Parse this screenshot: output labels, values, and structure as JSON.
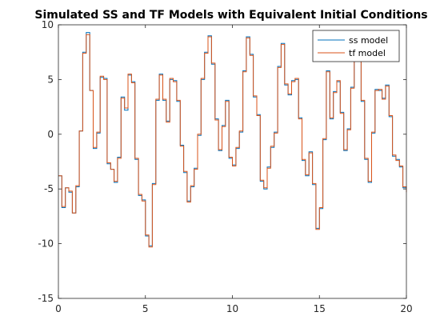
{
  "chart_data": {
    "type": "line",
    "title": "Simulated SS and TF Models with Equivalent Initial Conditions",
    "xlabel": "",
    "ylabel": "",
    "xlim": [
      0,
      20
    ],
    "ylim": [
      -15,
      10
    ],
    "xticks": [
      "0",
      "5",
      "10",
      "15",
      "20"
    ],
    "yticks": [
      "10",
      "5",
      "0",
      "-5",
      "-10",
      "-15"
    ],
    "grid": false,
    "legend_position": "top-right",
    "series": [
      {
        "name": "ss model",
        "color": "#0072BD"
      },
      {
        "name": "tf model",
        "color": "#D95319"
      }
    ],
    "x": [
      0,
      0.2,
      0.4,
      0.6,
      0.8,
      1.0,
      1.2,
      1.4,
      1.6,
      1.8,
      2.0,
      2.2,
      2.4,
      2.6,
      2.8,
      3.0,
      3.2,
      3.4,
      3.6,
      3.8,
      4.0,
      4.2,
      4.4,
      4.6,
      4.8,
      5.0,
      5.2,
      5.4,
      5.6,
      5.8,
      6.0,
      6.2,
      6.4,
      6.6,
      6.8,
      7.0,
      7.2,
      7.4,
      7.6,
      7.8,
      8.0,
      8.2,
      8.4,
      8.6,
      8.8,
      9.0,
      9.2,
      9.4,
      9.6,
      9.8,
      10.0,
      10.2,
      10.4,
      10.6,
      10.8,
      11.0,
      11.2,
      11.4,
      11.6,
      11.8,
      12.0,
      12.2,
      12.4,
      12.6,
      12.8,
      13.0,
      13.2,
      13.4,
      13.6,
      13.8,
      14.0,
      14.2,
      14.4,
      14.6,
      14.8,
      15.0,
      15.2,
      15.4,
      15.6,
      15.8,
      16.0,
      16.2,
      16.4,
      16.6,
      16.8,
      17.0,
      17.2,
      17.4,
      17.6,
      17.8,
      18.0,
      18.2,
      18.4,
      18.6,
      18.8,
      19.0,
      19.2,
      19.4,
      19.6,
      19.8,
      20.0
    ],
    "y": [
      -3.8,
      -6.7,
      -4.9,
      -5.3,
      -7.2,
      -4.8,
      0.3,
      7.5,
      9.3,
      4.0,
      -1.3,
      0.1,
      5.2,
      5.1,
      -2.7,
      -3.2,
      -4.4,
      -2.1,
      3.4,
      2.2,
      5.4,
      4.8,
      -2.3,
      -5.6,
      -6.0,
      -9.3,
      -10.2,
      -4.5,
      3.1,
      5.5,
      3.1,
      1.2,
      5.0,
      4.9,
      3.0,
      -1.0,
      -3.5,
      -6.1,
      -4.8,
      -3.1,
      -0.1,
      5.0,
      7.5,
      9.0,
      6.4,
      1.4,
      -1.5,
      0.8,
      3.1,
      -2.2,
      -2.8,
      -1.3,
      0.2,
      5.8,
      8.9,
      7.3,
      3.4,
      1.8,
      -4.3,
      -5.0,
      -3.0,
      -1.2,
      0.2,
      6.2,
      8.3,
      4.5,
      3.6,
      4.9,
      5.0,
      1.5,
      -2.4,
      -3.8,
      -1.6,
      -4.6,
      -8.6,
      -6.8,
      -0.5,
      5.8,
      1.4,
      3.9,
      4.8,
      2.0,
      -1.5,
      0.5,
      4.3,
      7.3,
      7.1,
      3.0,
      -2.3,
      -4.4,
      0.1,
      4.1,
      4.0,
      3.3,
      4.5,
      1.6,
      -2.0,
      -2.3,
      -3.0,
      -4.9,
      -5.2
    ],
    "y_tf": [
      -3.8,
      -6.6,
      -4.9,
      -5.2,
      -7.2,
      -4.7,
      0.3,
      7.4,
      9.1,
      4.0,
      -1.2,
      0.2,
      5.3,
      5.0,
      -2.6,
      -3.2,
      -4.3,
      -2.2,
      3.3,
      2.4,
      5.5,
      4.7,
      -2.2,
      -5.5,
      -6.1,
      -9.2,
      -10.3,
      -4.6,
      3.2,
      5.4,
      3.2,
      1.1,
      5.1,
      4.8,
      3.1,
      -1.1,
      -3.4,
      -6.2,
      -4.7,
      -3.2,
      0.0,
      5.1,
      7.4,
      8.9,
      6.5,
      1.3,
      -1.4,
      0.7,
      3.0,
      -2.1,
      -2.9,
      -1.2,
      0.3,
      5.7,
      8.8,
      7.2,
      3.5,
      1.7,
      -4.2,
      -4.9,
      -3.1,
      -1.1,
      0.1,
      6.1,
      8.2,
      4.6,
      3.7,
      4.8,
      5.1,
      1.4,
      -2.3,
      -3.7,
      -1.7,
      -4.5,
      -8.7,
      -6.7,
      -0.4,
      5.7,
      1.5,
      3.8,
      4.9,
      1.9,
      -1.4,
      0.4,
      4.2,
      7.2,
      7.0,
      3.1,
      -2.2,
      -4.3,
      0.2,
      4.0,
      4.1,
      3.2,
      4.4,
      1.7,
      -1.9,
      -2.4,
      -2.9,
      -4.8,
      -5.3
    ]
  }
}
